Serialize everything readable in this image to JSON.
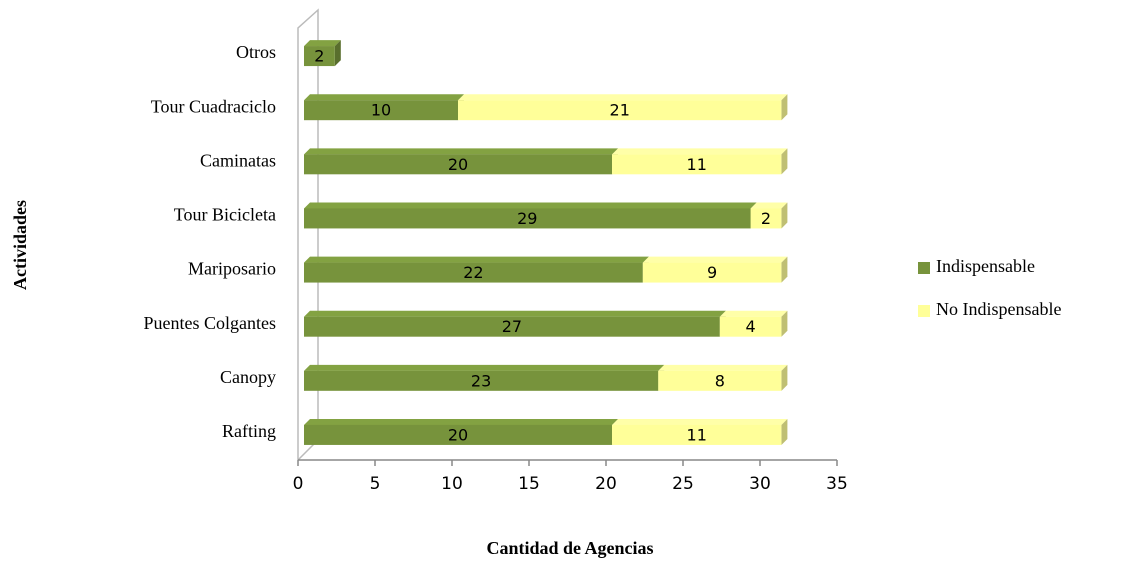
{
  "chart_data": {
    "type": "bar",
    "orientation": "horizontal",
    "stacked": true,
    "xlabel": "Cantidad de Agencias",
    "ylabel": "Actividades",
    "categories": [
      "Otros",
      "Tour Cuadraciclo",
      "Caminatas",
      "Tour Bicicleta",
      "Mariposario",
      "Puentes Colgantes",
      "Canopy",
      "Rafting"
    ],
    "series": [
      {
        "name": "Indispensable",
        "color": "#77933c",
        "values": [
          2,
          10,
          20,
          29,
          22,
          27,
          23,
          20
        ]
      },
      {
        "name": "No Indispensable",
        "color": "#ffff99",
        "values": [
          null,
          21,
          11,
          2,
          9,
          4,
          8,
          11
        ]
      }
    ],
    "xlim": [
      0,
      35
    ],
    "xticks": [
      0,
      5,
      10,
      15,
      20,
      25,
      30,
      35
    ],
    "legend": "right"
  }
}
